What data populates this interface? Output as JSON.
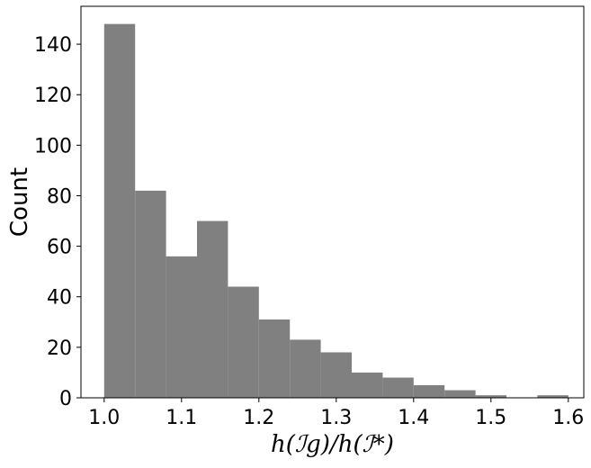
{
  "chart_data": {
    "type": "bar",
    "title": "",
    "xlabel": "h(ℐg)/h(ℐ*)",
    "ylabel": "Count",
    "bin_edges": [
      1.0,
      1.04,
      1.08,
      1.12,
      1.16,
      1.2,
      1.24,
      1.28,
      1.32,
      1.36,
      1.4,
      1.44,
      1.48,
      1.52,
      1.56,
      1.6
    ],
    "values": [
      148,
      82,
      56,
      70,
      44,
      31,
      23,
      18,
      10,
      8,
      5,
      3,
      1,
      0,
      1
    ],
    "xlim": [
      0.97,
      1.62
    ],
    "ylim": [
      0,
      155
    ],
    "xticks": [
      1.0,
      1.1,
      1.2,
      1.3,
      1.4,
      1.5,
      1.6
    ],
    "xtick_labels": [
      "1.0",
      "1.1",
      "1.2",
      "1.3",
      "1.4",
      "1.5",
      "1.6"
    ],
    "yticks": [
      0,
      20,
      40,
      60,
      80,
      100,
      120,
      140
    ],
    "ytick_labels": [
      "0",
      "20",
      "40",
      "60",
      "80",
      "100",
      "120",
      "140"
    ],
    "bar_color": "#808080",
    "grid": false,
    "legend": "none"
  }
}
